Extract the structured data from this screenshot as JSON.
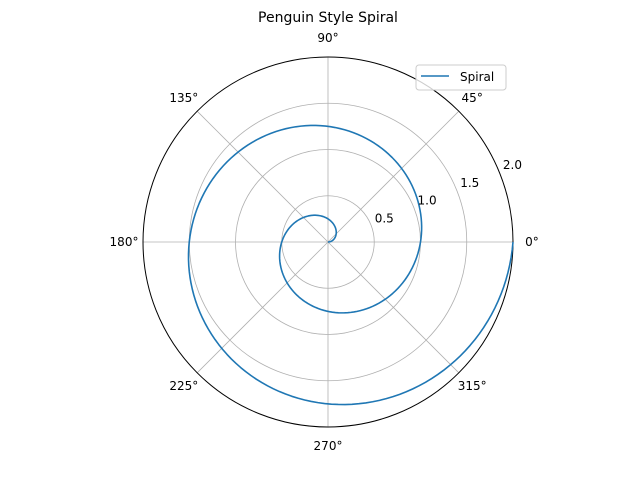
{
  "chart_data": {
    "type": "line",
    "projection": "polar",
    "title": "Penguin Style Spiral",
    "angle_ticks": [
      "0°",
      "45°",
      "90°",
      "135°",
      "180°",
      "225°",
      "270°",
      "315°"
    ],
    "radial_ticks": [
      "0.5",
      "1.0",
      "1.5",
      "2.0"
    ],
    "rlim": [
      0,
      2.0
    ],
    "grid": true,
    "legend": {
      "position": "upper-right",
      "entries": [
        "Spiral"
      ]
    },
    "series": [
      {
        "name": "Spiral",
        "color": "#1f77b4",
        "theta_deg": [
          0,
          30,
          60,
          90,
          120,
          150,
          180,
          210,
          240,
          270,
          300,
          330,
          360,
          390,
          420,
          450,
          480,
          510,
          540,
          570,
          600,
          630,
          660,
          690,
          720
        ],
        "r": [
          0.0,
          0.083,
          0.167,
          0.25,
          0.333,
          0.417,
          0.5,
          0.583,
          0.667,
          0.75,
          0.833,
          0.917,
          1.0,
          1.083,
          1.167,
          1.25,
          1.333,
          1.417,
          1.5,
          1.583,
          1.667,
          1.75,
          1.833,
          1.917,
          2.0
        ]
      }
    ]
  }
}
